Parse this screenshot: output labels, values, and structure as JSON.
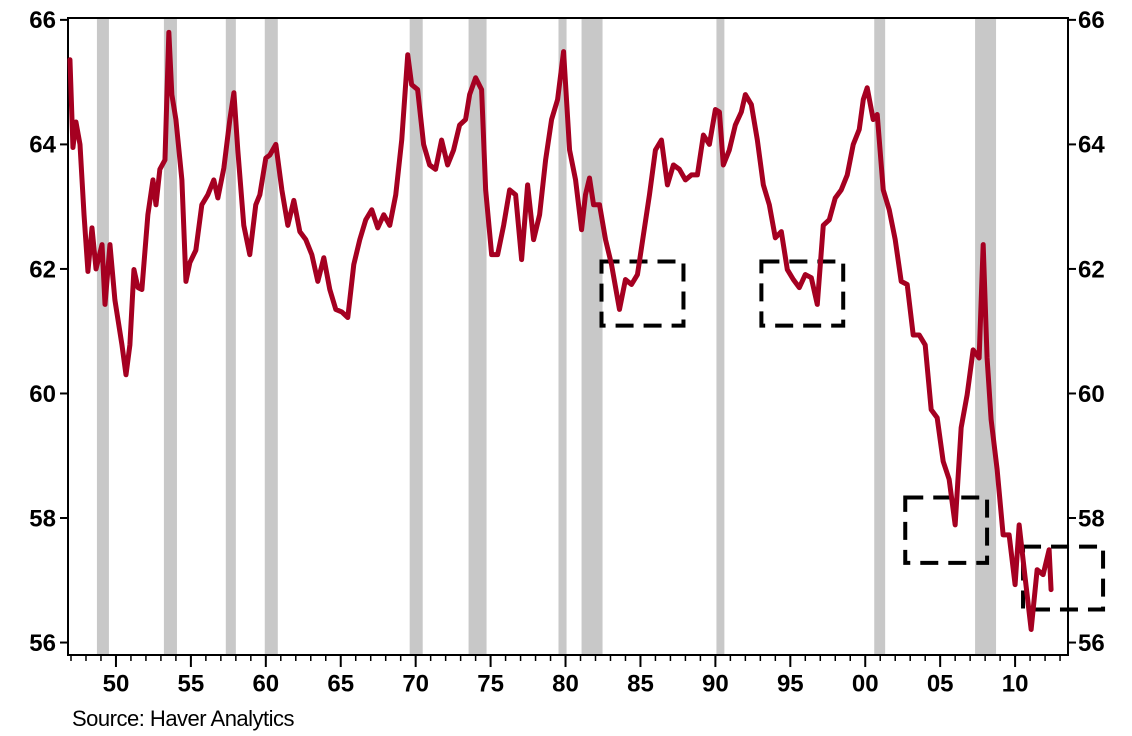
{
  "chart_data": {
    "type": "line",
    "source": "Source: Haver Analytics",
    "x": [
      1946.93,
      1947.13,
      1947.33,
      1947.6,
      1947.87,
      1948.13,
      1948.4,
      1948.67,
      1949.07,
      1949.27,
      1949.6,
      1949.93,
      1950.4,
      1950.67,
      1950.93,
      1951.2,
      1951.47,
      1951.73,
      1952.13,
      1952.47,
      1952.67,
      1952.93,
      1953.27,
      1953.53,
      1953.73,
      1954,
      1954.4,
      1954.67,
      1954.93,
      1955.33,
      1955.73,
      1956.13,
      1956.53,
      1956.8,
      1957.2,
      1957.6,
      1957.87,
      1958.13,
      1958.53,
      1958.93,
      1959.33,
      1959.6,
      1960,
      1960.27,
      1960.67,
      1961.07,
      1961.47,
      1961.87,
      1962.27,
      1962.67,
      1963.07,
      1963.47,
      1963.87,
      1964.27,
      1964.67,
      1965.07,
      1965.47,
      1965.87,
      1966.27,
      1966.67,
      1967.07,
      1967.47,
      1967.87,
      1968.27,
      1968.67,
      1969.07,
      1969.47,
      1969.73,
      1970.13,
      1970.53,
      1970.93,
      1971.33,
      1971.73,
      1972.13,
      1972.53,
      1972.93,
      1973.33,
      1973.6,
      1974,
      1974.4,
      1974.67,
      1975.07,
      1975.47,
      1975.87,
      1976.27,
      1976.67,
      1977.07,
      1977.47,
      1977.87,
      1978.27,
      1978.67,
      1979.07,
      1979.47,
      1979.87,
      1980.27,
      1980.67,
      1981.07,
      1981.33,
      1981.6,
      1981.87,
      1982.27,
      1982.67,
      1983.07,
      1983.6,
      1984,
      1984.4,
      1984.8,
      1985.2,
      1985.6,
      1986,
      1986.4,
      1986.8,
      1987.2,
      1987.6,
      1988,
      1988.4,
      1988.8,
      1989.2,
      1989.6,
      1990,
      1990.27,
      1990.53,
      1990.93,
      1991.33,
      1991.73,
      1992,
      1992.4,
      1992.8,
      1993.2,
      1993.6,
      1994,
      1994.4,
      1994.8,
      1995.2,
      1995.6,
      1996,
      1996.4,
      1996.8,
      1997.2,
      1997.6,
      1998,
      1998.4,
      1998.8,
      1999.2,
      1999.6,
      1999.87,
      2000.13,
      2000.53,
      2000.8,
      2001.2,
      2001.6,
      2002,
      2002.4,
      2002.8,
      2003.2,
      2003.6,
      2004,
      2004.4,
      2004.8,
      2005.2,
      2005.6,
      2006,
      2006.4,
      2006.8,
      2007.2,
      2007.6,
      2007.87,
      2008.13,
      2008.4,
      2008.8,
      2009.2,
      2009.6,
      2010,
      2010.27,
      2010.67,
      2011.07,
      2011.47,
      2011.87,
      2012.27,
      2012.4
    ],
    "series": [
      {
        "color": "#a50021",
        "values": [
          65.36,
          63.95,
          64.36,
          64.0,
          62.87,
          61.96,
          62.66,
          62.0,
          62.39,
          61.43,
          62.39,
          61.5,
          60.78,
          60.3,
          60.78,
          61.99,
          61.7,
          61.67,
          62.87,
          63.43,
          63.03,
          63.6,
          63.75,
          65.8,
          64.8,
          64.4,
          63.43,
          61.8,
          62.1,
          62.3,
          63.03,
          63.19,
          63.43,
          63.14,
          63.62,
          64.4,
          64.83,
          63.91,
          62.7,
          62.23,
          63.03,
          63.19,
          63.78,
          63.83,
          64.0,
          63.27,
          62.7,
          63.1,
          62.6,
          62.47,
          62.23,
          61.8,
          62.18,
          61.67,
          61.35,
          61.31,
          61.22,
          62.07,
          62.47,
          62.79,
          62.95,
          62.66,
          62.87,
          62.7,
          63.19,
          64.07,
          65.44,
          64.96,
          64.88,
          64.0,
          63.67,
          63.6,
          64.07,
          63.67,
          63.91,
          64.31,
          64.4,
          64.8,
          65.07,
          64.88,
          63.27,
          62.23,
          62.23,
          62.7,
          63.27,
          63.19,
          62.15,
          63.35,
          62.47,
          62.87,
          63.75,
          64.4,
          64.72,
          65.49,
          63.91,
          63.43,
          62.63,
          63.19,
          63.46,
          63.03,
          63.03,
          62.47,
          62.07,
          61.35,
          61.83,
          61.75,
          61.91,
          62.55,
          63.19,
          63.91,
          64.07,
          63.35,
          63.67,
          63.6,
          63.43,
          63.51,
          63.51,
          64.15,
          64.0,
          64.56,
          64.52,
          63.67,
          63.91,
          64.31,
          64.52,
          64.8,
          64.64,
          64.07,
          63.35,
          63.03,
          62.5,
          62.6,
          61.99,
          61.83,
          61.7,
          61.91,
          61.86,
          61.43,
          62.7,
          62.79,
          63.14,
          63.27,
          63.51,
          64.0,
          64.24,
          64.72,
          64.91,
          64.4,
          64.48,
          63.27,
          62.95,
          62.47,
          61.8,
          61.75,
          60.94,
          60.94,
          60.78,
          59.74,
          59.61,
          58.91,
          58.62,
          57.89,
          59.45,
          59.98,
          60.7,
          60.57,
          62.39,
          60.57,
          59.58,
          58.78,
          57.73,
          57.73,
          56.93,
          57.89,
          57.04,
          56.21,
          57.17,
          57.09,
          57.49,
          56.85
        ]
      }
    ],
    "xlim": [
      1946.8,
      2013.53
    ],
    "xticks": [
      {
        "value": 1950,
        "label": "50"
      },
      {
        "value": 1955,
        "label": "55"
      },
      {
        "value": 1960,
        "label": "60"
      },
      {
        "value": 1965,
        "label": "65"
      },
      {
        "value": 1970,
        "label": "70"
      },
      {
        "value": 1975,
        "label": "75"
      },
      {
        "value": 1980,
        "label": "80"
      },
      {
        "value": 1985,
        "label": "85"
      },
      {
        "value": 1990,
        "label": "90"
      },
      {
        "value": 1995,
        "label": "95"
      },
      {
        "value": 2000,
        "label": "00"
      },
      {
        "value": 2005,
        "label": "05"
      },
      {
        "value": 2010,
        "label": "10"
      }
    ],
    "ylim": [
      55.8,
      66.03
    ],
    "yticks": [
      56,
      58,
      60,
      62,
      64,
      66
    ],
    "y2lim": [
      55.8,
      66.03
    ],
    "y2ticks": [
      56,
      58,
      60,
      62,
      64,
      66
    ],
    "recessions": {
      "color": "#c8c8c8",
      "periods": [
        [
          1948.73,
          1949.53
        ],
        [
          1953.2,
          1954.07
        ],
        [
          1957.33,
          1958.0
        ],
        [
          1959.93,
          1960.8
        ],
        [
          1969.6,
          1970.47
        ],
        [
          1973.53,
          1974.73
        ],
        [
          1979.53,
          1980.07
        ],
        [
          1981.07,
          1982.47
        ],
        [
          1990.07,
          1990.6
        ],
        [
          2000.6,
          2001.33
        ],
        [
          2007.33,
          2008.73
        ]
      ]
    },
    "highlight_boxes": [
      {
        "x": [
          1982.4,
          1987.87
        ],
        "y": [
          61.09,
          62.12
        ]
      },
      {
        "x": [
          1993.07,
          1998.53
        ],
        "y": [
          61.09,
          62.12
        ]
      },
      {
        "x": [
          2002.67,
          2008.13
        ],
        "y": [
          57.28,
          58.33
        ]
      },
      {
        "x": [
          2010.53,
          2015.87
        ],
        "y": [
          56.53,
          57.54
        ]
      }
    ]
  }
}
